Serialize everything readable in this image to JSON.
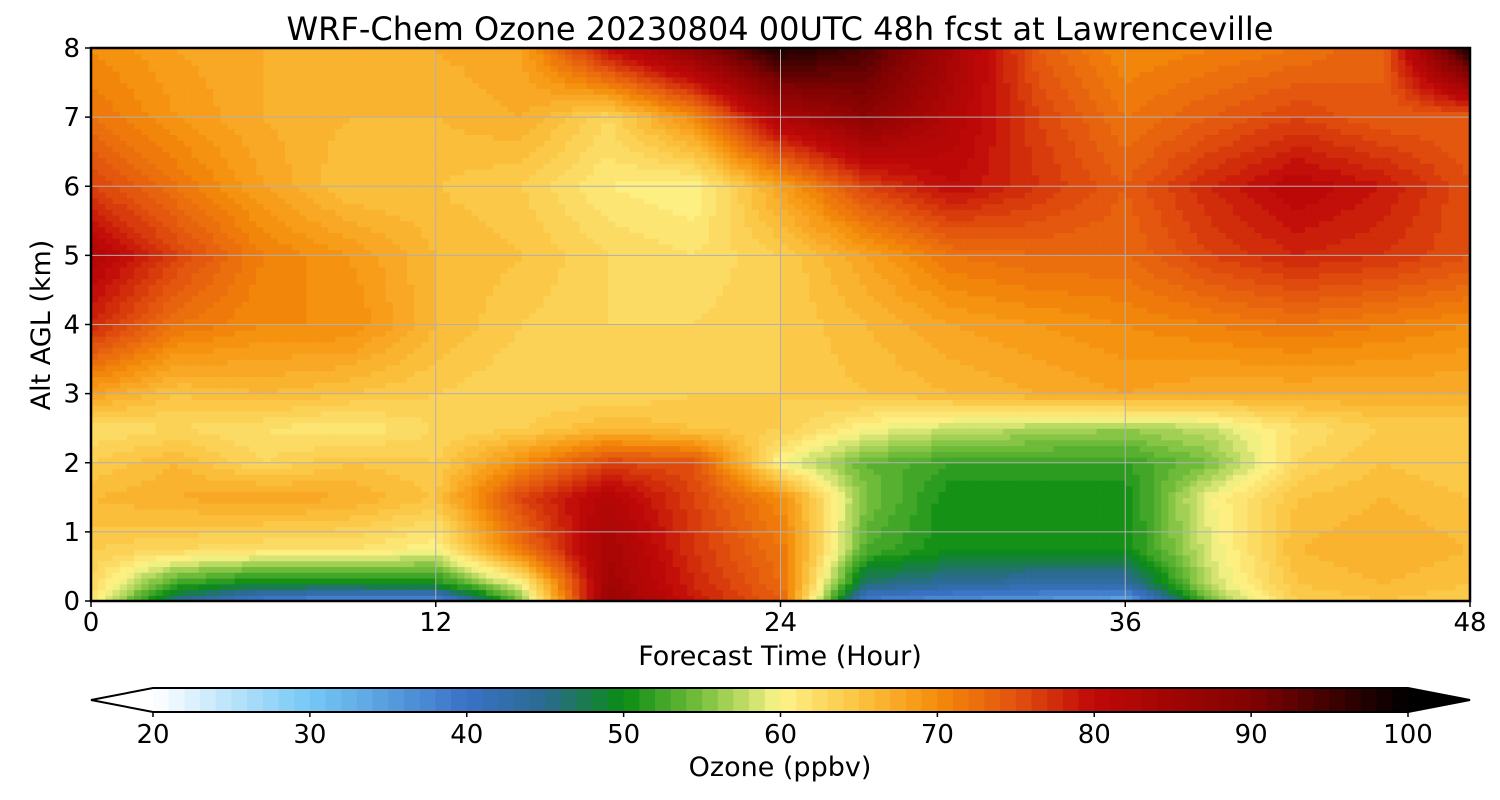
{
  "chart_data": {
    "type": "heatmap",
    "title": "WRF-Chem Ozone  20230804 00UTC 48h fcst at Lawrenceville",
    "xlabel": "Forecast Time (Hour)",
    "ylabel": "Alt AGL (km)",
    "xlim": [
      0,
      48
    ],
    "ylim": [
      0,
      8
    ],
    "x_ticks": [
      0,
      12,
      24,
      36,
      48
    ],
    "y_ticks": [
      0,
      1,
      2,
      3,
      4,
      5,
      6,
      7,
      8
    ],
    "grid": true,
    "x_hours": [
      0,
      3,
      6,
      9,
      12,
      15,
      18,
      21,
      24,
      27,
      30,
      33,
      36,
      39,
      42,
      45,
      48
    ],
    "z_km": [
      0,
      0.25,
      0.75,
      1.5,
      2.0,
      2.5,
      3.0,
      4.0,
      5.0,
      6.0,
      7.0,
      8.0
    ],
    "ozone_ppbv": [
      [
        62,
        45,
        38,
        36,
        36,
        55,
        86,
        79,
        74,
        38,
        36,
        35,
        33,
        55,
        64,
        65,
        64
      ],
      [
        63,
        52,
        49,
        49,
        50,
        60,
        85,
        78,
        73,
        46,
        44,
        43,
        43,
        58,
        65,
        66,
        65
      ],
      [
        64,
        63,
        62,
        62,
        60,
        72,
        84,
        77,
        72,
        53,
        50,
        50,
        50,
        59,
        66,
        67,
        66
      ],
      [
        66,
        67,
        68,
        67,
        65,
        76,
        82,
        76,
        70,
        55,
        50,
        50,
        50,
        60,
        65,
        66,
        65
      ],
      [
        64,
        66,
        63,
        65,
        64,
        70,
        76,
        75,
        60,
        54,
        52,
        52,
        52,
        55,
        63,
        65,
        64
      ],
      [
        62,
        63,
        62,
        61,
        63,
        64,
        66,
        65,
        64,
        60,
        58,
        57,
        56,
        58,
        62,
        64,
        64
      ],
      [
        68,
        65,
        66,
        65,
        64,
        63,
        63,
        64,
        64,
        65,
        66,
        67,
        68,
        67,
        67,
        67,
        67
      ],
      [
        78,
        72,
        70,
        70,
        66,
        64,
        63,
        63,
        64,
        66,
        68,
        69,
        70,
        71,
        72,
        71,
        70
      ],
      [
        82,
        76,
        71,
        69,
        66,
        65,
        63,
        62,
        64,
        68,
        72,
        73,
        73,
        76,
        78,
        77,
        75
      ],
      [
        76,
        72,
        68,
        65,
        65,
        64,
        61,
        60,
        68,
        76,
        80,
        77,
        74,
        78,
        81,
        79,
        75
      ],
      [
        72,
        69,
        67,
        66,
        66,
        67,
        63,
        70,
        83,
        88,
        82,
        76,
        72,
        74,
        76,
        74,
        74
      ],
      [
        70,
        68,
        67,
        66,
        67,
        68,
        80,
        88,
        98,
        94,
        84,
        74,
        70,
        71,
        72,
        74,
        98
      ]
    ],
    "colorbar": {
      "label": "Ozone  (ppbv)",
      "min": 20,
      "max": 100,
      "step": 1,
      "extend": "both",
      "ticks": [
        20,
        30,
        40,
        50,
        60,
        70,
        80,
        90,
        100
      ],
      "anchors": [
        {
          "v": 20,
          "color": "#ffffff"
        },
        {
          "v": 30,
          "color": "#74c8f5"
        },
        {
          "v": 40,
          "color": "#3a72c6"
        },
        {
          "v": 45,
          "color": "#2a6a90"
        },
        {
          "v": 50,
          "color": "#0a8c12"
        },
        {
          "v": 55,
          "color": "#79c03e"
        },
        {
          "v": 60,
          "color": "#fdf488"
        },
        {
          "v": 66,
          "color": "#fbb933"
        },
        {
          "v": 70,
          "color": "#f48c0a"
        },
        {
          "v": 75,
          "color": "#e2510e"
        },
        {
          "v": 80,
          "color": "#c00808"
        },
        {
          "v": 90,
          "color": "#800202"
        },
        {
          "v": 100,
          "color": "#000000"
        }
      ]
    }
  }
}
